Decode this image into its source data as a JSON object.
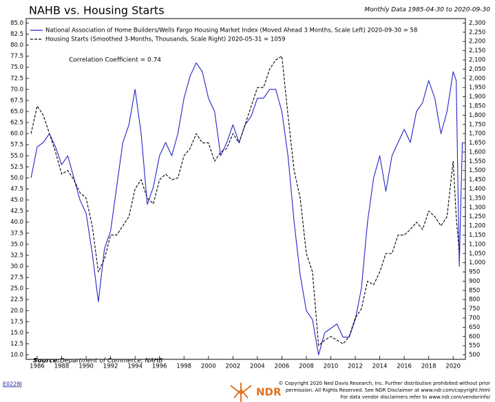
{
  "chart_data": {
    "type": "line",
    "title": "NAHB vs. Housing Starts",
    "subtitle": "Monthly Data 1985-04-30 to 2020-09-30",
    "annotation": "Correlation Coefficient = 0.74",
    "source_label": "Source:",
    "source": "Department of Commerce, NAHB",
    "code": "E0228I",
    "copyright": [
      "© Copyright 2020 Ned Davis Research, Inc. Further distribution prohibited without prior",
      "permission. All Rights Reserved. See NDR Disclaimer at www.ndr.com/copyright.html",
      "For data vendor disclaimers refer to www.ndr.com/vendorinfo/"
    ],
    "logo": "NDR",
    "x": [
      1985.5,
      1986,
      1986.5,
      1987,
      1987.5,
      1988,
      1988.5,
      1989,
      1989.5,
      1990,
      1990.5,
      1991,
      1991.5,
      1992,
      1992.5,
      1993,
      1993.5,
      1994,
      1994.5,
      1995,
      1995.5,
      1996,
      1996.5,
      1997,
      1997.5,
      1998,
      1998.5,
      1999,
      1999.5,
      2000,
      2000.5,
      2001,
      2001.5,
      2002,
      2002.5,
      2003,
      2003.5,
      2004,
      2004.5,
      2005,
      2005.5,
      2006,
      2006.5,
      2007,
      2007.5,
      2008,
      2008.5,
      2009,
      2009.5,
      2010,
      2010.5,
      2011,
      2011.5,
      2012,
      2012.5,
      2013,
      2013.5,
      2014,
      2014.5,
      2015,
      2015.5,
      2016,
      2016.5,
      2017,
      2017.5,
      2018,
      2018.5,
      2019,
      2019.5,
      2020,
      2020.25,
      2020.5,
      2020.75
    ],
    "series": [
      {
        "name": "National Association of Home Builders/Wells Fargo Housing Market Index (Moved Ahead 3 Months, Scale Left) 2020-09-30 = 58",
        "color": "#2323c8",
        "dash": "solid",
        "values": [
          50,
          57,
          58,
          60,
          57,
          53,
          55,
          50,
          45,
          42,
          33,
          22,
          34,
          38,
          48,
          58,
          62,
          70,
          60,
          44,
          48,
          55,
          58,
          55,
          60,
          68,
          73,
          76,
          74,
          68,
          65,
          55,
          58,
          62,
          58,
          62,
          64,
          68,
          68,
          70,
          70,
          65,
          55,
          40,
          28,
          20,
          18,
          10,
          15,
          16,
          17,
          14,
          14,
          18,
          25,
          40,
          50,
          55,
          47,
          55,
          58,
          61,
          58,
          65,
          67,
          72,
          68,
          60,
          65,
          74,
          72,
          30,
          58
        ]
      },
      {
        "name": "Housing Starts (Smoothed 3-Months, Thousands, Scale Right) 2020-05-31 = 1059",
        "color": "#000000",
        "dash": "dashed",
        "axis": "y2",
        "values": [
          1700,
          1850,
          1800,
          1700,
          1600,
          1480,
          1500,
          1450,
          1380,
          1350,
          1200,
          950,
          1020,
          1150,
          1150,
          1200,
          1250,
          1400,
          1450,
          1350,
          1320,
          1450,
          1480,
          1450,
          1460,
          1580,
          1620,
          1700,
          1650,
          1650,
          1550,
          1600,
          1620,
          1700,
          1650,
          1750,
          1850,
          1950,
          1950,
          2050,
          2100,
          2120,
          1800,
          1500,
          1350,
          1050,
          950,
          550,
          580,
          600,
          580,
          560,
          600,
          700,
          750,
          900,
          880,
          950,
          1050,
          1050,
          1150,
          1150,
          1180,
          1220,
          1180,
          1280,
          1250,
          1200,
          1250,
          1550,
          1250,
          1059,
          null
        ]
      }
    ],
    "xlim": [
      1985.1,
      2021.0
    ],
    "xticks": [
      1986,
      1988,
      1990,
      1992,
      1994,
      1996,
      1998,
      2000,
      2002,
      2004,
      2006,
      2008,
      2010,
      2012,
      2014,
      2016,
      2018,
      2020
    ],
    "ylim": [
      9,
      86
    ],
    "yticks": [
      {
        "value": 10,
        "label": "10.0"
      },
      {
        "value": 12.5,
        "label": "12.5"
      },
      {
        "value": 15,
        "label": "15.0"
      },
      {
        "value": 17.5,
        "label": "17.5"
      },
      {
        "value": 20,
        "label": "20.0"
      },
      {
        "value": 22.5,
        "label": "22.5"
      },
      {
        "value": 25,
        "label": "25.0"
      },
      {
        "value": 27.5,
        "label": "27.5"
      },
      {
        "value": 30,
        "label": "30.0"
      },
      {
        "value": 32.5,
        "label": "32.5"
      },
      {
        "value": 35,
        "label": "35.0"
      },
      {
        "value": 37.5,
        "label": "37.5"
      },
      {
        "value": 40,
        "label": "40.0"
      },
      {
        "value": 42.5,
        "label": "42.5"
      },
      {
        "value": 45,
        "label": "45.0"
      },
      {
        "value": 47.5,
        "label": "47.5"
      },
      {
        "value": 50,
        "label": "50.0"
      },
      {
        "value": 52.5,
        "label": "52.5"
      },
      {
        "value": 55,
        "label": "55.0"
      },
      {
        "value": 57.5,
        "label": "57.5"
      },
      {
        "value": 60,
        "label": "60.0"
      },
      {
        "value": 62.5,
        "label": "62.5"
      },
      {
        "value": 65,
        "label": "65.0"
      },
      {
        "value": 67.5,
        "label": "67.5"
      },
      {
        "value": 70,
        "label": "70.0"
      },
      {
        "value": 72.5,
        "label": "72.5"
      },
      {
        "value": 75,
        "label": "75.0"
      },
      {
        "value": 77.5,
        "label": "77.5"
      },
      {
        "value": 80,
        "label": "80.0"
      },
      {
        "value": 82.5,
        "label": "82.5"
      },
      {
        "value": 85,
        "label": "85.0"
      }
    ],
    "y2lim": [
      476,
      2324
    ],
    "y2ticks": [
      500,
      550,
      600,
      650,
      700,
      750,
      800,
      850,
      900,
      950,
      {
        "value": 1000,
        "label": "1,000"
      },
      {
        "value": 1050,
        "label": "1,050"
      },
      {
        "value": 1100,
        "label": "1,100"
      },
      {
        "value": 1150,
        "label": "1,150"
      },
      {
        "value": 1200,
        "label": "1,200"
      },
      {
        "value": 1250,
        "label": "1,250"
      },
      {
        "value": 1300,
        "label": "1,300"
      },
      {
        "value": 1350,
        "label": "1,350"
      },
      {
        "value": 1400,
        "label": "1,400"
      },
      {
        "value": 1450,
        "label": "1,450"
      },
      {
        "value": 1500,
        "label": "1,500"
      },
      {
        "value": 1550,
        "label": "1,550"
      },
      {
        "value": 1600,
        "label": "1,600"
      },
      {
        "value": 1650,
        "label": "1,650"
      },
      {
        "value": 1700,
        "label": "1,700"
      },
      {
        "value": 1750,
        "label": "1,750"
      },
      {
        "value": 1800,
        "label": "1,800"
      },
      {
        "value": 1850,
        "label": "1,850"
      },
      {
        "value": 1900,
        "label": "1,900"
      },
      {
        "value": 1950,
        "label": "1,950"
      },
      {
        "value": 2000,
        "label": "2,000"
      },
      {
        "value": 2050,
        "label": "2,050"
      },
      {
        "value": 2100,
        "label": "2,100"
      },
      {
        "value": 2150,
        "label": "2,150"
      },
      {
        "value": 2200,
        "label": "2,200"
      },
      {
        "value": 2250,
        "label": "2,250"
      },
      {
        "value": 2300,
        "label": "2,300"
      }
    ]
  }
}
